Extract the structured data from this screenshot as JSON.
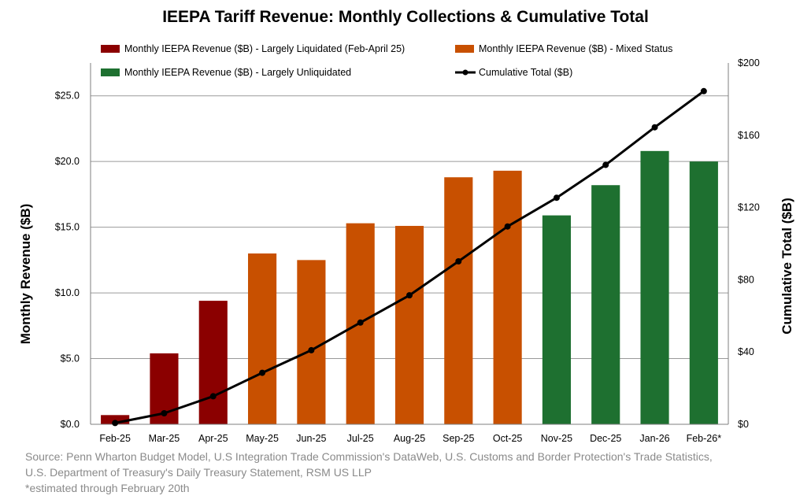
{
  "chart_data": {
    "type": "bar",
    "title": "IEEPA Tariff Revenue: Monthly Collections & Cumulative Total",
    "categories": [
      "Feb-25",
      "Mar-25",
      "Apr-25",
      "May-25",
      "Jun-25",
      "Jul-25",
      "Aug-25",
      "Sep-25",
      "Oct-25",
      "Nov-25",
      "Dec-25",
      "Jan-26",
      "Feb-26*"
    ],
    "values": [
      0.7,
      5.4,
      9.4,
      13.0,
      12.5,
      15.3,
      15.1,
      18.8,
      19.3,
      15.9,
      18.2,
      20.8,
      20.0
    ],
    "bar_groups": [
      "liquidated",
      "liquidated",
      "liquidated",
      "mixed",
      "mixed",
      "mixed",
      "mixed",
      "mixed",
      "mixed",
      "unliquidated",
      "unliquidated",
      "unliquidated",
      "unliquidated"
    ],
    "series": [
      {
        "key": "liquidated",
        "name": "Monthly IEEPA Revenue ($B) - Largely Liquidated (Feb-April 25)",
        "color": "#8b0000",
        "type": "bar"
      },
      {
        "key": "mixed",
        "name": "Monthly IEEPA Revenue ($B) - Mixed Status",
        "color": "#c85000",
        "type": "bar"
      },
      {
        "key": "unliquidated",
        "name": "Monthly IEEPA Revenue ($B) - Largely Unliquidated",
        "color": "#1e7030",
        "type": "bar"
      },
      {
        "key": "cumulative",
        "name": "Cumulative Total ($B)",
        "color": "#000000",
        "type": "line",
        "axis": "right",
        "values": [
          0.7,
          6.1,
          15.5,
          28.5,
          41.0,
          56.3,
          71.4,
          90.2,
          109.5,
          125.4,
          143.6,
          164.4,
          184.4
        ]
      }
    ],
    "ylabel": "Monthly Revenue ($B)",
    "y2label": "Cumulative Total ($B)",
    "ylim": [
      0,
      27.5
    ],
    "y2lim": [
      0,
      200
    ],
    "yticks": [
      "$0.0",
      "$5.0",
      "$10.0",
      "$15.0",
      "$20.0",
      "$25.0"
    ],
    "y2ticks": [
      "$0",
      "$40",
      "$80",
      "$120",
      "$160",
      "$200"
    ],
    "grid": true,
    "legend_position": "top"
  },
  "footnotes": {
    "source_line1": "Source: Penn Wharton Budget Model, U.S Integration Trade Commission's DataWeb, U.S. Customs and Border Protection's Trade Statistics,",
    "source_line2": "U.S. Department of Treasury's Daily Treasury Statement, RSM US LLP",
    "estimate_note": "*estimated through February 20th"
  }
}
